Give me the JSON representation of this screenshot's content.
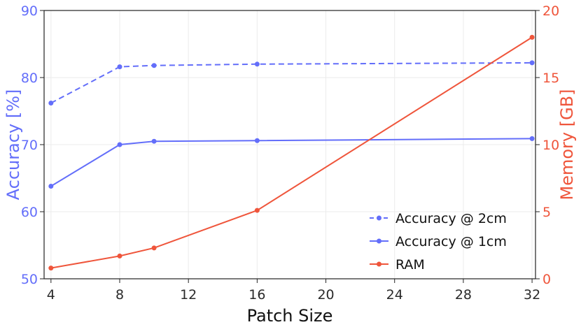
{
  "chart_data": {
    "type": "line",
    "title": "",
    "xlabel": "Patch Size",
    "ylabel_left": "Accuracy [%]",
    "ylabel_right": "Memory [GB]",
    "x": [
      4,
      8,
      10,
      16,
      32
    ],
    "xlim": [
      3.6,
      32.2
    ],
    "xticks": [
      4,
      8,
      12,
      16,
      20,
      24,
      28,
      32
    ],
    "ylim_left": [
      50,
      90
    ],
    "yticks_left": [
      50,
      60,
      70,
      80,
      90
    ],
    "ylim_right": [
      0,
      20
    ],
    "yticks_right": [
      0,
      5,
      10,
      15,
      20
    ],
    "grid": true,
    "legend_position": "bottom-right",
    "series": [
      {
        "name": "Accuracy @ 2cm",
        "axis": "left",
        "dash": true,
        "color": "#636efa",
        "values": [
          76.2,
          81.6,
          81.8,
          82.0,
          82.2
        ]
      },
      {
        "name": "Accuracy @ 1cm",
        "axis": "left",
        "dash": false,
        "color": "#636efa",
        "values": [
          63.8,
          70.0,
          70.5,
          70.6,
          70.9
        ]
      },
      {
        "name": "RAM",
        "axis": "right",
        "dash": false,
        "color": "#ef553b",
        "values": [
          0.8,
          1.7,
          2.3,
          5.1,
          18.0
        ]
      }
    ],
    "colors": {
      "left_axis": "#636efa",
      "right_axis": "#ef553b"
    }
  }
}
